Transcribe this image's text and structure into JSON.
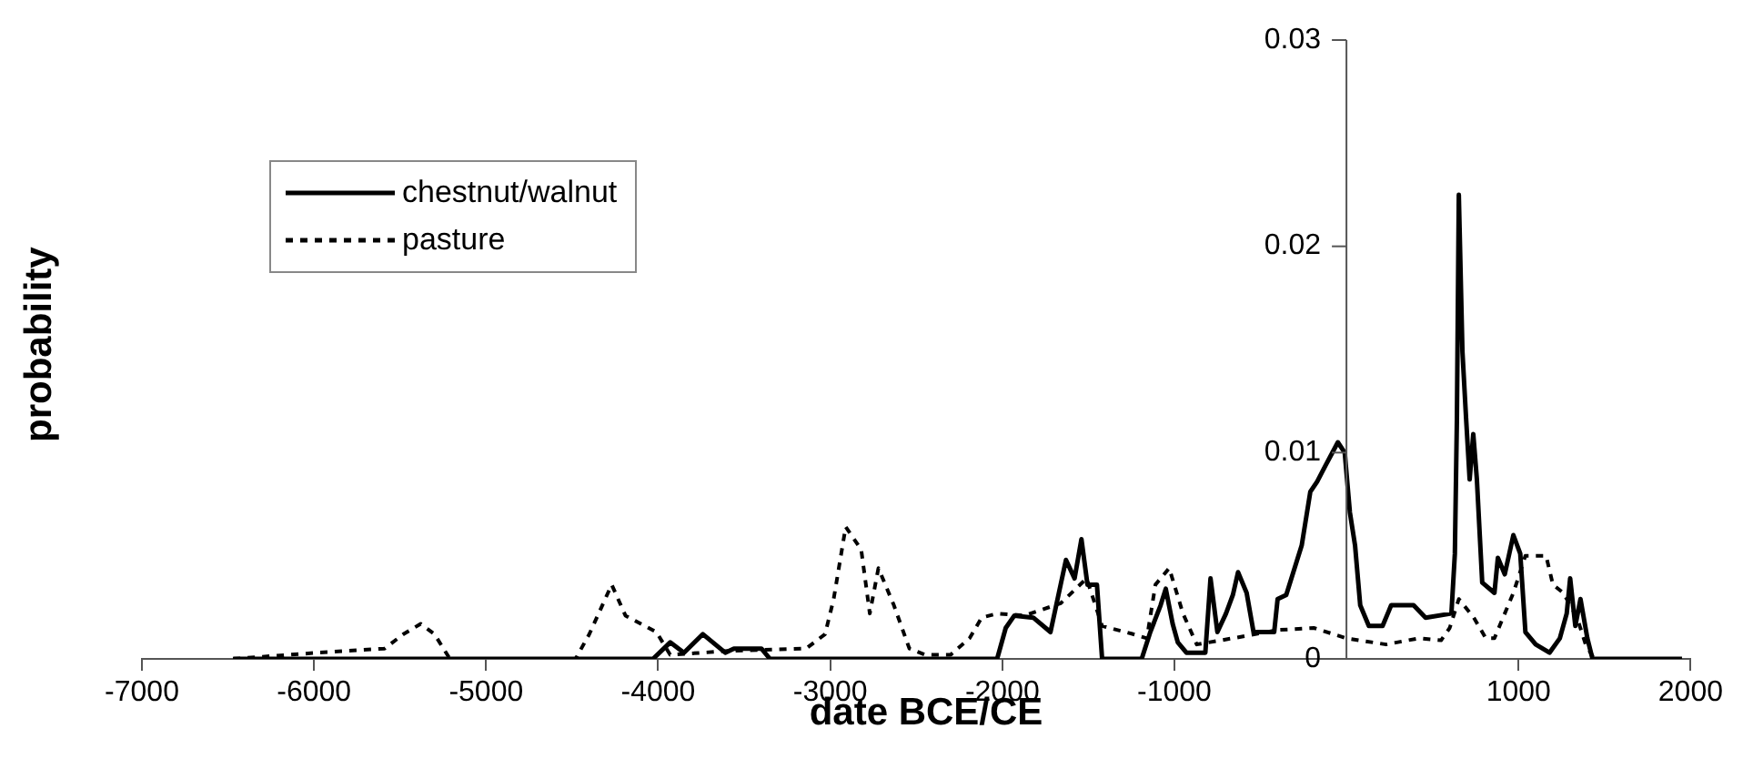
{
  "chart_data": {
    "type": "line",
    "xlabel": "date BCE/CE",
    "ylabel": "probability",
    "xlim": [
      -7000,
      2000
    ],
    "xticks": [
      -7000,
      -6000,
      -5000,
      -4000,
      -3000,
      -2000,
      -1000,
      1000,
      2000
    ],
    "ylim": [
      0,
      0.03
    ],
    "yticks": [
      0,
      0.01,
      0.02,
      0.03
    ],
    "grid": false,
    "legend": "top left",
    "marker": "none",
    "series": [
      {
        "name": "chestnut/walnut",
        "color": "#000000",
        "line_style": "solid",
        "x": [
          -6470,
          -4030,
          -3930,
          -3850,
          -3740,
          -3610,
          -3560,
          -3400,
          -3350,
          -2030,
          -1980,
          -1930,
          -1820,
          -1720,
          -1630,
          -1580,
          -1540,
          -1505,
          -1450,
          -1420,
          -1190,
          -1140,
          -1080,
          -1050,
          -1010,
          -980,
          -930,
          -820,
          -790,
          -750,
          -700,
          -660,
          -630,
          -580,
          -540,
          -420,
          -400,
          -350,
          -260,
          -210,
          -170,
          -120,
          -50,
          -10,
          20,
          50,
          80,
          130,
          210,
          260,
          390,
          460,
          610,
          630,
          642,
          653,
          674,
          695,
          716,
          737,
          758,
          789,
          860,
          880,
          920,
          970,
          1010,
          1040,
          1100,
          1180,
          1240,
          1280,
          1300,
          1330,
          1360,
          1400,
          1430,
          1950
        ],
        "values": [
          0,
          0,
          0.0008,
          0.0003,
          0.0012,
          0.0003,
          0.0005,
          0.0005,
          0,
          0,
          0.0015,
          0.0021,
          0.002,
          0.0013,
          0.0048,
          0.0039,
          0.0058,
          0.0036,
          0.0036,
          0,
          0,
          0.0013,
          0.0026,
          0.0034,
          0.0017,
          0.0008,
          0.0003,
          0.0003,
          0.0039,
          0.0013,
          0.0022,
          0.0031,
          0.0042,
          0.0032,
          0.0013,
          0.0013,
          0.0029,
          0.0031,
          0.0055,
          0.0081,
          0.0086,
          0.0094,
          0.0105,
          0.01,
          0.0071,
          0.0055,
          0.0026,
          0.0016,
          0.0016,
          0.0026,
          0.0026,
          0.002,
          0.0022,
          0.0051,
          0.0117,
          0.0225,
          0.0149,
          0.0117,
          0.0087,
          0.0109,
          0.0087,
          0.0037,
          0.0032,
          0.0049,
          0.0041,
          0.006,
          0.0051,
          0.0013,
          0.0007,
          0.0003,
          0.001,
          0.0022,
          0.0039,
          0.0016,
          0.0029,
          0.001,
          0,
          0
        ]
      },
      {
        "name": "pasture",
        "color": "#000000",
        "line_style": "dashed",
        "x": [
          -6470,
          -5980,
          -5590,
          -5480,
          -5380,
          -5300,
          -5210,
          -4480,
          -4400,
          -4270,
          -4190,
          -4010,
          -3930,
          -3560,
          -3140,
          -3030,
          -2980,
          -2910,
          -2820,
          -2770,
          -2720,
          -2630,
          -2540,
          -2450,
          -2300,
          -2190,
          -2120,
          -2030,
          -1870,
          -1660,
          -1510,
          -1420,
          -1240,
          -1160,
          -1110,
          -1030,
          -950,
          -870,
          -660,
          -400,
          -190,
          0,
          230,
          420,
          550,
          600,
          653,
          740,
          810,
          860,
          920,
          970,
          1040,
          1160,
          1200,
          1260,
          1340,
          1390,
          1440,
          1900
        ],
        "values": [
          0,
          0.0003,
          0.0005,
          0.0012,
          0.0017,
          0.0012,
          0,
          0,
          0.0012,
          0.0036,
          0.0021,
          0.0013,
          0.0002,
          0.0004,
          0.0005,
          0.0012,
          0.0029,
          0.0064,
          0.0053,
          0.0022,
          0.0044,
          0.0026,
          0.0005,
          0.0002,
          0.0002,
          0.001,
          0.002,
          0.0022,
          0.0021,
          0.0027,
          0.0039,
          0.0016,
          0.0012,
          0.001,
          0.0036,
          0.0044,
          0.0022,
          0.0007,
          0.001,
          0.0014,
          0.0015,
          0.001,
          0.0007,
          0.001,
          0.0009,
          0.0015,
          0.0029,
          0.002,
          0.001,
          0.001,
          0.0022,
          0.0032,
          0.005,
          0.005,
          0.0036,
          0.0032,
          0.002,
          0.0007,
          0,
          0
        ]
      }
    ]
  }
}
